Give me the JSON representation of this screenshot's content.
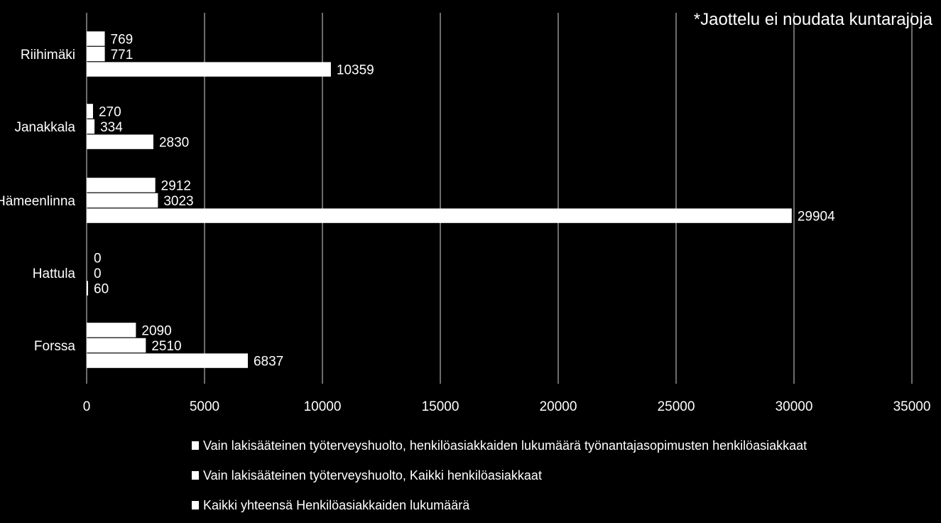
{
  "chart_data": {
    "type": "bar",
    "orientation": "horizontal",
    "categories": [
      "Riihimäki",
      "Janakkala",
      "Hämeenlinna",
      "Hattula",
      "Forssa"
    ],
    "series": [
      {
        "name": "Vain lakisääteinen työterveyshuolto, henkilöasiakkaiden lukumäärä työnantajasopimusten henkilöasiakkaat",
        "values": [
          769,
          270,
          2912,
          0,
          2090
        ],
        "color": "#ffffff"
      },
      {
        "name": "Vain lakisääteinen työterveyshuolto, Kaikki henkilöasiakkaat",
        "values": [
          771,
          334,
          3023,
          0,
          2510
        ],
        "color": "#ffffff"
      },
      {
        "name": "Kaikki yhteensä Henkilöasiakkaiden lukumäärä",
        "values": [
          10359,
          2830,
          29904,
          60,
          6837
        ],
        "color": "#ffffff"
      }
    ],
    "xlim": [
      0,
      35000
    ],
    "xticks": [
      "0",
      "5000",
      "10000",
      "15000",
      "20000",
      "25000",
      "30000",
      "35000"
    ],
    "grid": true,
    "legend_position": "bottom",
    "annotation": "*Jaottelu ei noudata kuntarajoja",
    "background": "#000000",
    "gridline_color": "#d9d9d9"
  }
}
